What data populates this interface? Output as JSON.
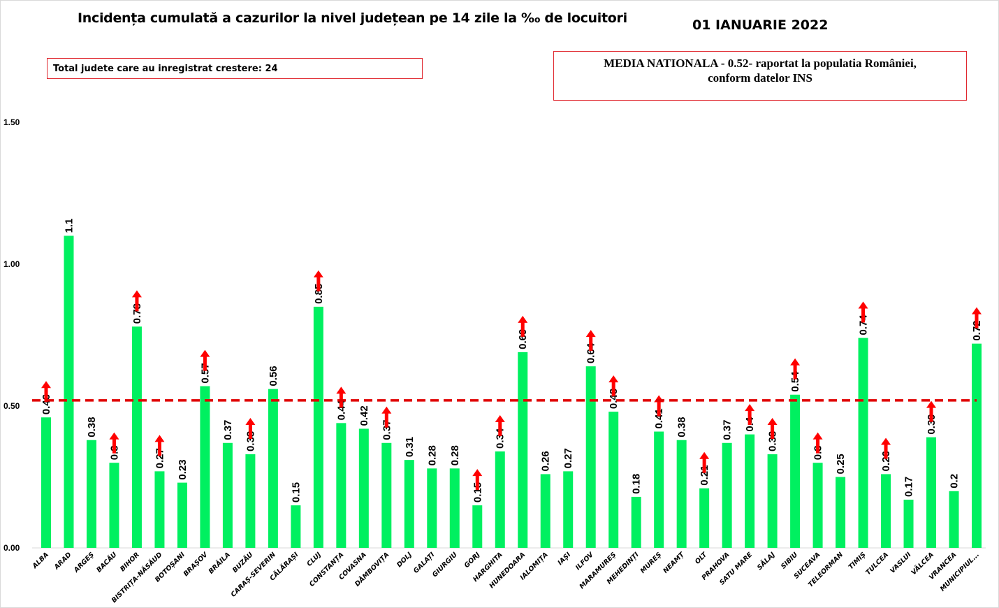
{
  "chart_data": {
    "type": "bar",
    "title": "Incidența cumulată a cazurilor la nivel județean pe 14 zile la ‰ de locuitori",
    "date": "01 IANUARIE 2022",
    "note_increase": "Total judete care au inregistrat crestere: 24",
    "note_mean_line1": "MEDIA NATIONALA - 0.52-  raportat la populatia  României,",
    "note_mean_line2": "conform datelor INS",
    "mean": 0.52,
    "ylim": [
      0,
      1.5
    ],
    "yticks": [
      "0.00",
      "0.50",
      "1.00",
      "1.50"
    ],
    "grid": false,
    "colors": {
      "bar": "#00f060",
      "mean_line": "#e00000",
      "arrow": "#ff0000",
      "box_border": "#e0282f"
    },
    "categories": [
      "ALBA",
      "ARAD",
      "ARGEȘ",
      "BACĂU",
      "BIHOR",
      "BISTRIȚA-NĂSĂUD",
      "BOTOȘANI",
      "BRAȘOV",
      "BRĂILA",
      "BUZĂU",
      "CARAȘ-SEVERIN",
      "CĂLĂRAȘI",
      "CLUJ",
      "CONSTANȚA",
      "COVASNA",
      "DÂMBOVIȚA",
      "DOLJ",
      "GALAȚI",
      "GIURGIU",
      "GORJ",
      "HARGHITA",
      "HUNEDOARA",
      "IALOMIȚA",
      "IAȘI",
      "ILFOV",
      "MARAMUREȘ",
      "MEHEDINȚI",
      "MUREȘ",
      "NEAMȚ",
      "OLT",
      "PRAHOVA",
      "SATU MARE",
      "SĂLAJ",
      "SIBIU",
      "SUCEAVA",
      "TELEORMAN",
      "TIMIȘ",
      "TULCEA",
      "VASLUI",
      "VÂLCEA",
      "VRANCEA",
      "MUNICIPIUL..."
    ],
    "values": [
      0.46,
      1.1,
      0.38,
      0.3,
      0.78,
      0.27,
      0.23,
      0.57,
      0.37,
      0.33,
      0.56,
      0.15,
      0.85,
      0.44,
      0.42,
      0.37,
      0.31,
      0.28,
      0.28,
      0.15,
      0.34,
      0.69,
      0.26,
      0.27,
      0.64,
      0.48,
      0.18,
      0.41,
      0.38,
      0.21,
      0.37,
      0.4,
      0.33,
      0.54,
      0.3,
      0.25,
      0.74,
      0.26,
      0.17,
      0.39,
      0.2,
      0.72
    ],
    "increase": [
      1,
      0,
      0,
      1,
      1,
      1,
      0,
      1,
      0,
      1,
      0,
      0,
      1,
      1,
      0,
      1,
      0,
      0,
      0,
      1,
      1,
      1,
      0,
      0,
      1,
      1,
      0,
      1,
      0,
      1,
      0,
      1,
      1,
      1,
      1,
      0,
      1,
      1,
      0,
      1,
      0,
      1
    ]
  }
}
